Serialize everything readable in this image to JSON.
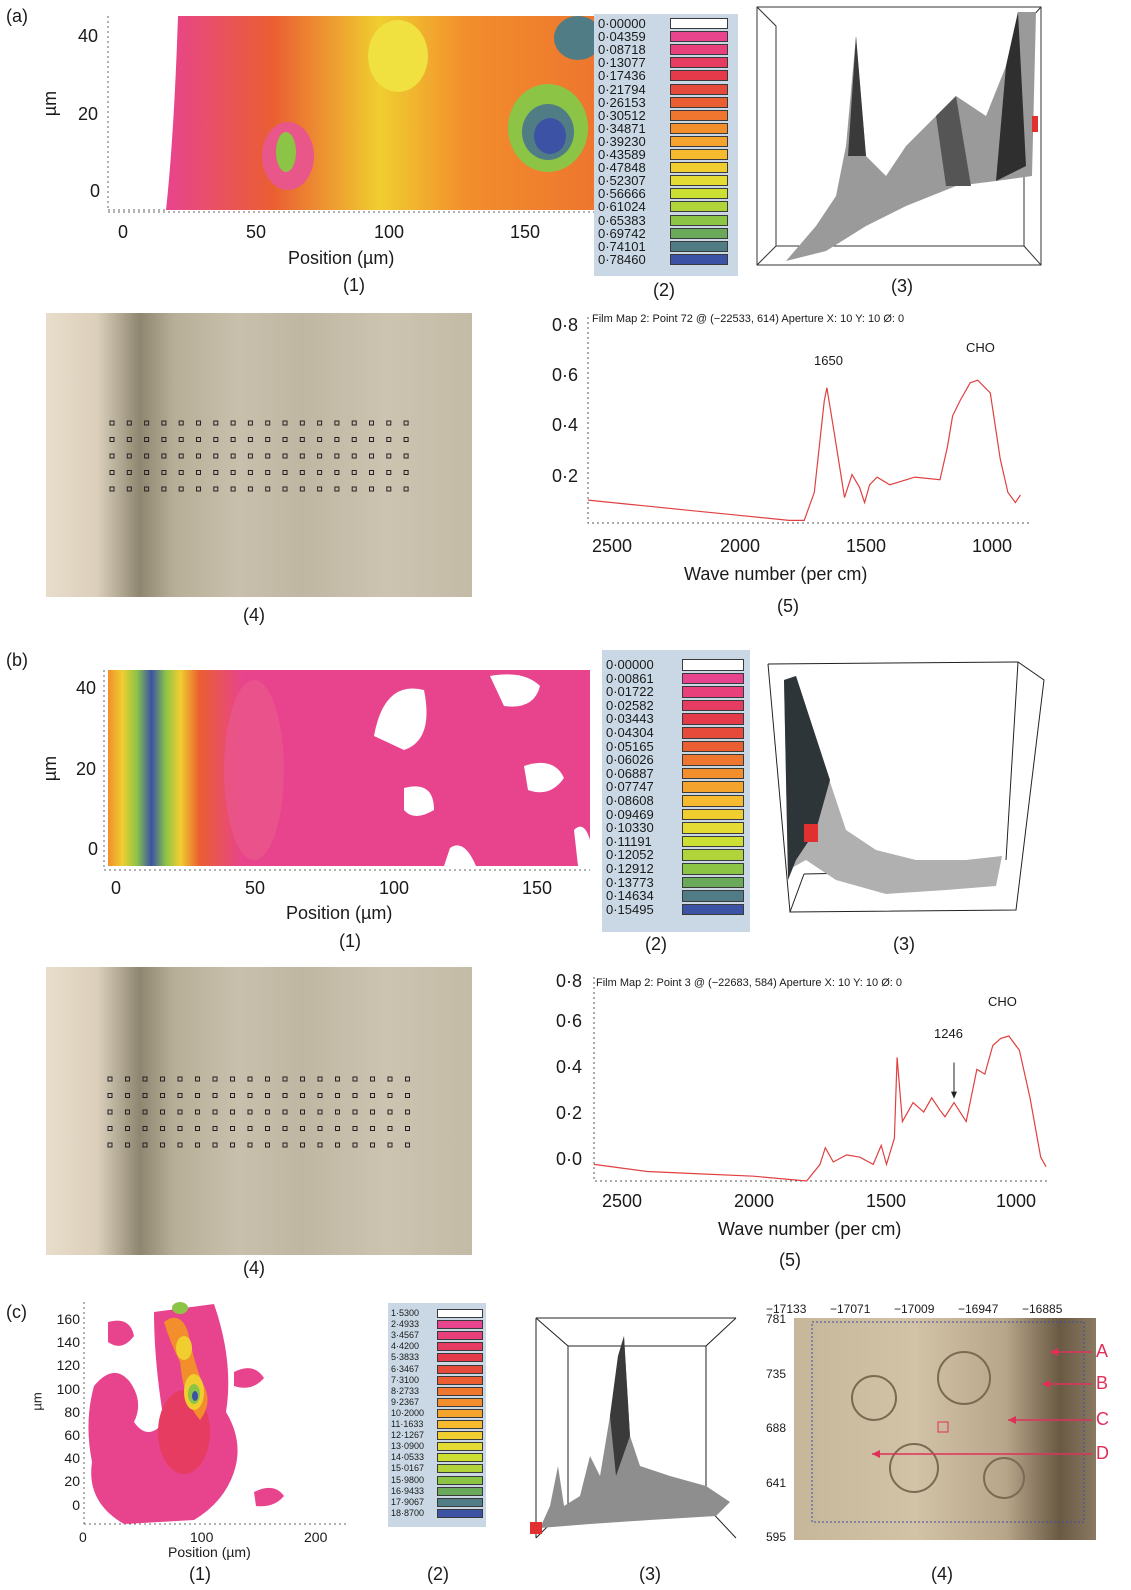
{
  "panels": {
    "a": {
      "label": "(a)"
    },
    "b": {
      "label": "(b)"
    },
    "c": {
      "label": "(c)"
    }
  },
  "captions": {
    "c1": "(1)",
    "c2": "(2)",
    "c3": "(3)",
    "c4": "(4)",
    "c5": "(5)"
  },
  "map_axes": {
    "ylabel": "µm",
    "xlabel": "Position (µm)"
  },
  "map_a": {
    "yticks": [
      "40",
      "20",
      "0"
    ],
    "xticks": [
      "0",
      "50",
      "100",
      "150"
    ]
  },
  "map_b": {
    "yticks": [
      "40",
      "20",
      "0"
    ],
    "xticks": [
      "0",
      "50",
      "100",
      "150"
    ]
  },
  "map_c": {
    "yticks": [
      "160",
      "140",
      "120",
      "100",
      "80",
      "60",
      "40",
      "20",
      "0"
    ],
    "xticks": [
      "0",
      "100",
      "200"
    ]
  },
  "legend_a": [
    "0·00000",
    "0·04359",
    "0·08718",
    "0·13077",
    "0·17436",
    "0·21794",
    "0·26153",
    "0·30512",
    "0·34871",
    "0·39230",
    "0·43589",
    "0·47848",
    "0·52307",
    "0·56666",
    "0·61024",
    "0·65383",
    "0·69742",
    "0·74101",
    "0·78460"
  ],
  "legend_b": [
    "0·00000",
    "0·00861",
    "0·01722",
    "0·02582",
    "0·03443",
    "0·04304",
    "0·05165",
    "0·06026",
    "0·06887",
    "0·07747",
    "0·08608",
    "0·09469",
    "0·10330",
    "0·11191",
    "0·12052",
    "0·12912",
    "0·13773",
    "0·14634",
    "0·15495"
  ],
  "legend_c": [
    "1·5300",
    "2·4933",
    "3·4567",
    "4·4200",
    "5·3833",
    "6·3467",
    "7·3100",
    "8·2733",
    "9·2367",
    "10·2000",
    "11·1633",
    "12·1267",
    "13·0900",
    "14·0533",
    "15·0167",
    "15·9800",
    "16·9433",
    "17·9067",
    "18·8700"
  ],
  "legend_colors": [
    "#ffffff",
    "#e8448e",
    "#e8407a",
    "#e63c62",
    "#e53a4a",
    "#e64a3a",
    "#ea5e32",
    "#ee762e",
    "#f28e2c",
    "#f4a42c",
    "#f6ba2e",
    "#f0ce30",
    "#e4dc34",
    "#cce034",
    "#b0d43a",
    "#8cc446",
    "#6aa85a",
    "#507c86",
    "#3c52a4"
  ],
  "spectrum_a": {
    "title": "Film Map 2: Point 72 @ (−22533, 614) Aperture X: 10 Y: 10 Ø: 0",
    "yticks": [
      "0·8",
      "0·6",
      "0·4",
      "0·2"
    ],
    "xticks": [
      "2500",
      "2000",
      "1500",
      "1000"
    ],
    "xlabel": "Wave number (per cm)",
    "annotations": [
      "1650",
      "CHO"
    ]
  },
  "spectrum_b": {
    "title": "Film Map 2: Point 3 @ (−22683, 584) Aperture X: 10 Y: 10 Ø: 0",
    "yticks": [
      "0·8",
      "0·6",
      "0·4",
      "0·2",
      "0·0"
    ],
    "xticks": [
      "2500",
      "2000",
      "1500",
      "1000"
    ],
    "xlabel": "Wave number (per cm)",
    "annotations": [
      "1246",
      "CHO"
    ]
  },
  "micro_c": {
    "xticks": [
      "−17133",
      "−17071",
      "−17009",
      "−16947",
      "−16885"
    ],
    "yticks": [
      "781",
      "735",
      "688",
      "641",
      "595"
    ],
    "markers": [
      "A",
      "B",
      "C",
      "D"
    ],
    "marker_color": "#e0305a"
  },
  "chart_data": [
    {
      "type": "line",
      "title": "Film Map 2: Point 72 @ (−22533, 614) Aperture X: 10 Y: 10 Ø: 0",
      "xlabel": "Wave number (per cm)",
      "ylabel": "",
      "xlim": [
        2600,
        850
      ],
      "ylim": [
        0,
        0.8
      ],
      "x": [
        2600,
        2400,
        2200,
        2000,
        1800,
        1740,
        1700,
        1660,
        1650,
        1620,
        1580,
        1550,
        1520,
        1500,
        1480,
        1450,
        1400,
        1300,
        1200,
        1170,
        1150,
        1120,
        1080,
        1050,
        1000,
        960,
        930,
        900,
        880
      ],
      "y": [
        0.09,
        0.07,
        0.05,
        0.03,
        0.01,
        0.01,
        0.12,
        0.48,
        0.53,
        0.35,
        0.1,
        0.19,
        0.14,
        0.08,
        0.15,
        0.18,
        0.15,
        0.18,
        0.17,
        0.3,
        0.42,
        0.48,
        0.55,
        0.56,
        0.51,
        0.25,
        0.12,
        0.08,
        0.11
      ]
    },
    {
      "type": "line",
      "title": "Film Map 2: Point 3 @ (−22683, 584) Aperture X: 10 Y: 10 Ø: 0",
      "xlabel": "Wave number (per cm)",
      "ylabel": "",
      "xlim": [
        2600,
        900
      ],
      "ylim": [
        -0.05,
        0.8
      ],
      "x": [
        2600,
        2400,
        2200,
        2000,
        1800,
        1750,
        1730,
        1700,
        1650,
        1600,
        1550,
        1520,
        1500,
        1470,
        1460,
        1440,
        1400,
        1360,
        1330,
        1300,
        1280,
        1246,
        1200,
        1160,
        1130,
        1100,
        1070,
        1040,
        1000,
        960,
        920,
        900
      ],
      "y": [
        0.02,
        -0.01,
        -0.02,
        -0.03,
        -0.05,
        0.02,
        0.09,
        0.03,
        0.06,
        0.05,
        0.02,
        0.1,
        0.02,
        0.13,
        0.47,
        0.2,
        0.28,
        0.24,
        0.3,
        0.25,
        0.22,
        0.28,
        0.2,
        0.42,
        0.4,
        0.52,
        0.55,
        0.56,
        0.5,
        0.3,
        0.05,
        0.01
      ]
    }
  ]
}
